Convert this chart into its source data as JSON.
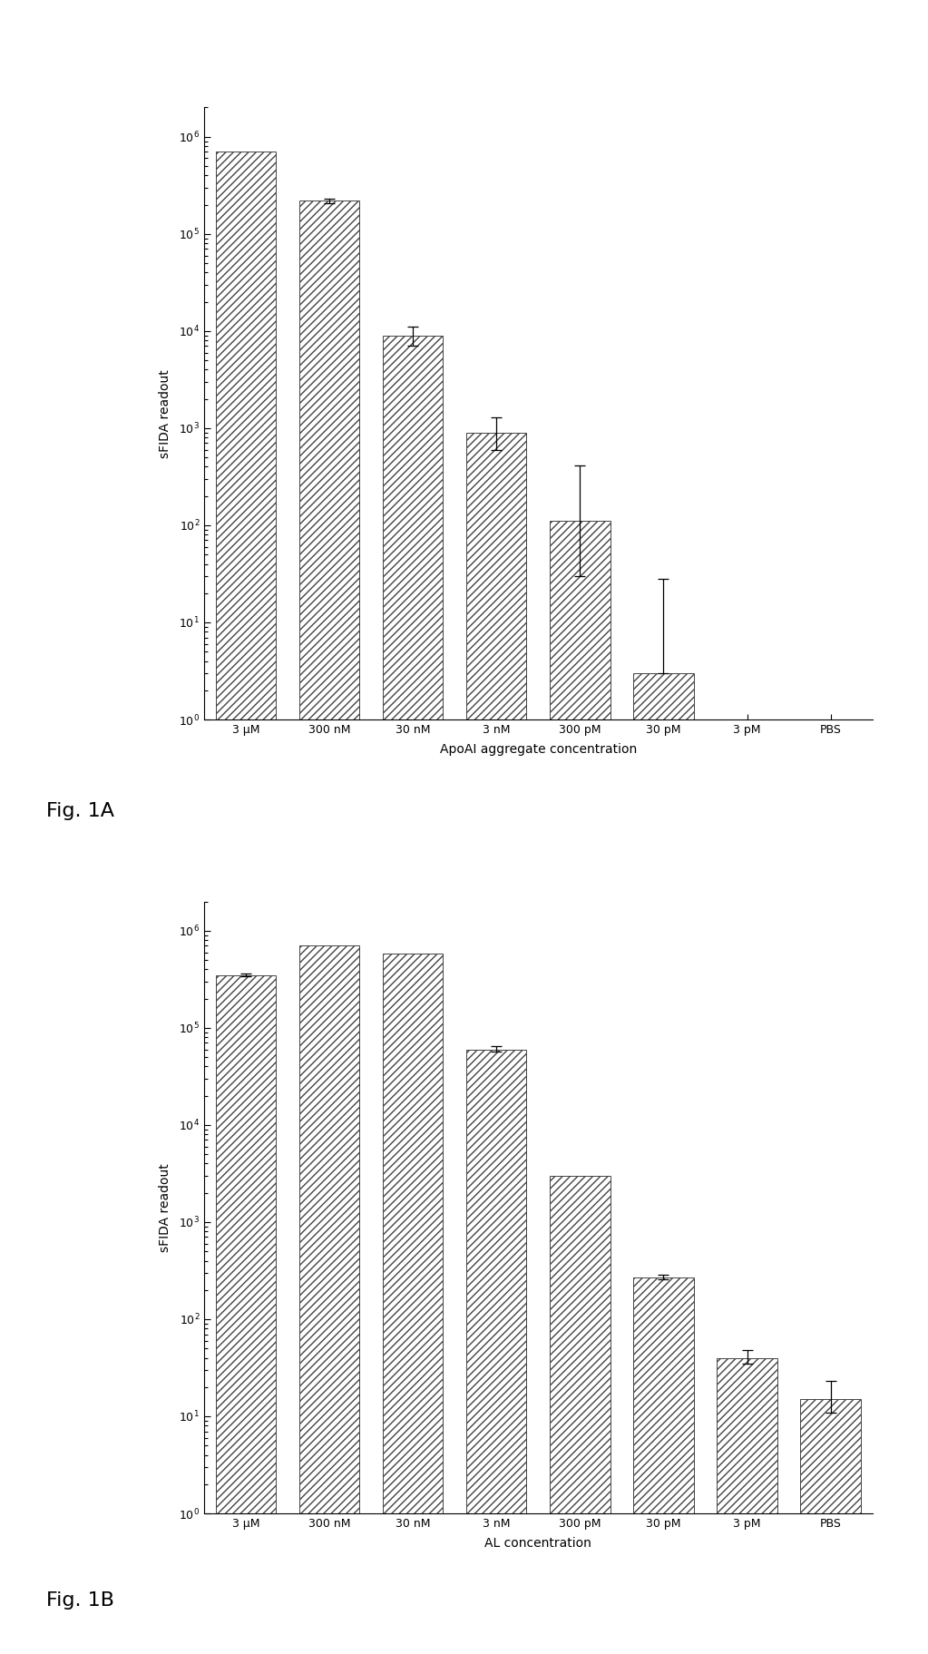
{
  "fig1a": {
    "categories": [
      "3 μM",
      "300 nM",
      "30 nM",
      "3 nM",
      "300 pM",
      "30 pM",
      "3 pM",
      "PBS"
    ],
    "values": [
      700000,
      220000,
      9000,
      900,
      110,
      3,
      1e-09,
      1e-09
    ],
    "errors_upper": [
      0,
      12000,
      2000,
      400,
      300,
      25,
      0,
      0
    ],
    "errors_lower": [
      0,
      12000,
      2000,
      300,
      80,
      0,
      0,
      0
    ],
    "ylabel": "sFIDA readout",
    "xlabel": "ApoAI aggregate concentration",
    "ylim_min": 1,
    "ylim_max": 2000000,
    "yticks": [
      1,
      10,
      100,
      1000,
      10000,
      100000,
      1000000
    ],
    "ytick_labels": [
      "10⁰",
      "10¹",
      "10²",
      "10³",
      "10⁴",
      "10⁵",
      "10⁶"
    ],
    "label": "Fig. 1A"
  },
  "fig1b": {
    "categories": [
      "3 μM",
      "300 nM",
      "30 nM",
      "3 nM",
      "300 pM",
      "30 pM",
      "3 pM",
      "PBS"
    ],
    "values": [
      350000,
      700000,
      580000,
      60000,
      3000,
      270,
      40,
      15
    ],
    "errors_upper": [
      12000,
      0,
      0,
      5000,
      0,
      15,
      8,
      8
    ],
    "errors_lower": [
      12000,
      0,
      0,
      3000,
      0,
      10,
      5,
      4
    ],
    "ylabel": "sFIDA readout",
    "xlabel": "AL concentration",
    "ylim_min": 1,
    "ylim_max": 2000000,
    "yticks": [
      1,
      10,
      100,
      1000,
      10000,
      100000,
      1000000
    ],
    "ytick_labels": [
      "10⁰",
      "10¹",
      "10²",
      "10³",
      "10⁴",
      "10⁵",
      "10⁶"
    ],
    "label": "Fig. 1B"
  },
  "hatch_pattern": "////",
  "bar_color": "white",
  "bar_edgecolor": "#444444",
  "background_color": "white",
  "fig_label_fontsize": 16,
  "axis_fontsize": 10,
  "tick_fontsize": 9
}
